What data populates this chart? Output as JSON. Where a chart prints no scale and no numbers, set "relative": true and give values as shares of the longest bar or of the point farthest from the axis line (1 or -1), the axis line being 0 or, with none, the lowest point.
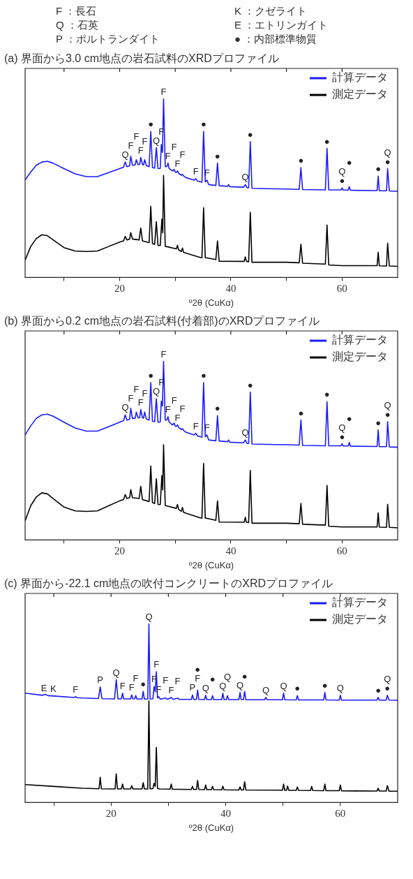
{
  "chart_data": [
    {
      "type": "line",
      "relative": true,
      "title": "(a) 界面から3.0 cm地点の岩石試料のXRDプロファイル",
      "xlabel": "º2θ (CuKα)",
      "xlim": [
        3,
        70
      ],
      "xticks": [
        {
          "value": 10,
          "label": null
        },
        20,
        {
          "value": 30,
          "label": null
        },
        40,
        {
          "value": 50,
          "label": null
        },
        60
      ],
      "legend": "top right",
      "marker": "none",
      "series": [
        {
          "name": "計算データ",
          "color": "#1a1aff",
          "x": [
            3,
            4,
            5,
            6,
            7,
            8,
            10,
            12,
            14,
            16,
            18,
            20,
            20.7,
            21,
            21.3,
            21.8,
            22,
            22.3,
            22.8,
            23,
            23.3,
            23.6,
            23.8,
            24.1,
            24.3,
            24.5,
            24.8,
            25.3,
            25.6,
            25.9,
            26.3,
            26.6,
            26.9,
            27.3,
            27.5,
            27.7,
            27.9,
            28.2,
            28.5,
            28.7,
            28.9,
            29.5,
            29.8,
            30,
            30.2,
            30.4,
            30.7,
            31.1,
            31.3,
            31.6,
            32,
            33.4,
            33.7,
            34,
            34.8,
            35.1,
            35.4,
            35.7,
            36,
            37.3,
            37.6,
            37.9,
            39.4,
            39.6,
            39.8,
            42.3,
            42.6,
            42.9,
            43.2,
            43.5,
            43.8,
            48,
            50,
            52.3,
            52.6,
            52.9,
            57,
            57.3,
            57.6,
            59.8,
            60,
            60.2,
            61.1,
            61.3,
            61.5,
            66.3,
            66.5,
            66.7,
            68,
            68.2,
            68.5,
            70
          ],
          "values": [
            0.545,
            0.59,
            0.628,
            0.646,
            0.65,
            0.64,
            0.609,
            0.58,
            0.564,
            0.564,
            0.587,
            0.609,
            0.617,
            0.646,
            0.62,
            0.625,
            0.678,
            0.628,
            0.63,
            0.659,
            0.632,
            0.633,
            0.672,
            0.632,
            0.63,
            0.659,
            0.627,
            0.62,
            0.817,
            0.615,
            0.612,
            0.726,
            0.609,
            0.61,
            0.744,
            0.7,
            1,
            0.62,
            0.621,
            0.64,
            0.61,
            0.596,
            0.605,
            0.59,
            0.588,
            0.596,
            0.58,
            0.572,
            0.577,
            0.565,
            0.558,
            0.545,
            0.553,
            0.54,
            0.533,
            0.817,
            0.535,
            0.545,
            0.52,
            0.515,
            0.64,
            0.514,
            0.51,
            0.52,
            0.508,
            0.505,
            0.52,
            0.502,
            0.502,
            0.76,
            0.499,
            0.496,
            0.495,
            0.493,
            0.615,
            0.492,
            0.49,
            0.722,
            0.49,
            0.49,
            0.501,
            0.489,
            0.489,
            0.508,
            0.488,
            0.486,
            0.567,
            0.485,
            0.485,
            0.609,
            0.484,
            0.482
          ]
        },
        {
          "name": "測定データ",
          "color": "#000000",
          "x": [
            3,
            4,
            5,
            6,
            7,
            8,
            10,
            12,
            14,
            16,
            18,
            20,
            20.7,
            21,
            21.3,
            21.8,
            22,
            22.3,
            23.5,
            23.8,
            24.1,
            25.3,
            25.6,
            25.9,
            26.3,
            26.6,
            26.9,
            27.3,
            27.6,
            27.75,
            27.9,
            28.2,
            28.4,
            30.2,
            30.4,
            30.6,
            31.1,
            31.3,
            31.5,
            32,
            34.5,
            34.8,
            35.1,
            35.4,
            35.6,
            37.3,
            37.6,
            37.9,
            42.4,
            42.6,
            42.8,
            43.2,
            43.5,
            43.8,
            50,
            52.3,
            52.6,
            52.9,
            57,
            57.3,
            57.6,
            60,
            66.3,
            66.5,
            66.7,
            68,
            68.2,
            68.5,
            70
          ],
          "values": [
            0.097,
            0.173,
            0.217,
            0.239,
            0.234,
            0.211,
            0.167,
            0.148,
            0.145,
            0.148,
            0.173,
            0.198,
            0.205,
            0.23,
            0.21,
            0.215,
            0.251,
            0.215,
            0.21,
            0.277,
            0.205,
            0.195,
            0.398,
            0.19,
            0.185,
            0.312,
            0.18,
            0.179,
            0.327,
            0.25,
            0.571,
            0.175,
            0.173,
            0.16,
            0.18,
            0.155,
            0.145,
            0.165,
            0.14,
            0.135,
            0.112,
            0.11,
            0.39,
            0.11,
            0.11,
            0.1,
            0.205,
            0.091,
            0.09,
            0.115,
            0.09,
            0.088,
            0.365,
            0.085,
            0.085,
            0.082,
            0.186,
            0.08,
            0.075,
            0.293,
            0.07,
            0.066,
            0.066,
            0.141,
            0.065,
            0.064,
            0.192,
            0.064,
            0.062
          ]
        }
      ],
      "annotations": [
        "F ：長石",
        "Q ：石英",
        "P ：ポルトランダイト",
        "K ：クゼライト",
        "E ：エトリンガイト",
        "● ：内部標準物質",
        {
          "text": "Q",
          "x": 21,
          "y": 0.646
        },
        {
          "text": "F",
          "x": 22,
          "y": 0.678
        },
        {
          "text": "F",
          "x": 23,
          "y": 0.659
        },
        {
          "text": "F",
          "x": 23.8,
          "y": 0.672
        },
        {
          "text": "F",
          "x": 24.5,
          "y": 0.659
        },
        {
          "text": "●",
          "x": 25.6,
          "y": 0.817
        },
        {
          "text": "Q",
          "x": 26.6,
          "y": 0.726
        },
        {
          "text": "F",
          "x": 27.9,
          "y": 1
        },
        {
          "text": "F",
          "x": 27.5,
          "y": 0.744
        },
        {
          "text": "F",
          "x": 28.7,
          "y": 0.64
        },
        {
          "text": "F",
          "x": 29.8,
          "y": 0.605
        },
        {
          "text": "F",
          "x": 30.4,
          "y": 0.596
        },
        {
          "text": "F",
          "x": 31.3,
          "y": 0.577
        },
        {
          "text": "F",
          "x": 33.7,
          "y": 0.553
        },
        {
          "text": "●",
          "x": 35.1,
          "y": 0.817
        },
        {
          "text": "F",
          "x": 35.7,
          "y": 0.545
        },
        {
          "text": "●",
          "x": 37.6,
          "y": 0.64
        },
        {
          "text": "Q",
          "x": 42.6,
          "y": 0.52
        },
        {
          "text": "●",
          "x": 43.5,
          "y": 0.76
        },
        {
          "text": "●",
          "x": 52.6,
          "y": 0.615
        },
        {
          "text": "●",
          "x": 57.3,
          "y": 0.722
        },
        {
          "text": "●",
          "x": 60,
          "y": 0.501
        },
        {
          "text": "Q",
          "x": 60,
          "y": 0.501
        },
        {
          "text": "●",
          "x": 61.3,
          "y": 0.508
        },
        {
          "text": "●",
          "x": 66.5,
          "y": 0.567
        },
        {
          "text": "●",
          "x": 68.2,
          "y": 0.609
        },
        {
          "text": "Q",
          "x": 68.2,
          "y": 0.609
        }
      ]
    },
    {
      "type": "line",
      "relative": true,
      "title": "(b) 界面から0.2 cm地点の岩石試料(付着部)のXRDプロファイル",
      "xlabel": "º2θ (CuKα)",
      "xlim": [
        3,
        70
      ],
      "xticks": [
        {
          "value": 10,
          "label": null
        },
        20,
        {
          "value": 30,
          "label": null
        },
        40,
        {
          "value": 50,
          "label": null
        },
        60
      ],
      "legend": "top right",
      "marker": "none",
      "series": [
        {
          "name": "計算データ",
          "color": "#1a1aff",
          "x": [
            3,
            4,
            5,
            6,
            7,
            8,
            10,
            12,
            14,
            16,
            18,
            20,
            20.7,
            21,
            21.3,
            21.8,
            22,
            22.3,
            22.8,
            23,
            23.3,
            23.6,
            23.8,
            24.1,
            24.3,
            24.5,
            24.8,
            25.3,
            25.6,
            25.9,
            26.3,
            26.6,
            26.9,
            27.3,
            27.5,
            27.7,
            27.9,
            28.2,
            28.5,
            28.7,
            28.9,
            29.5,
            29.8,
            30,
            30.2,
            30.4,
            30.7,
            31.1,
            31.3,
            31.6,
            32,
            33.4,
            33.7,
            34,
            34.8,
            35.1,
            35.4,
            35.7,
            36,
            37.3,
            37.6,
            37.9,
            39.4,
            39.6,
            39.8,
            42.3,
            42.6,
            42.9,
            43.2,
            43.5,
            43.8,
            48,
            50,
            52.3,
            52.6,
            52.9,
            57,
            57.3,
            57.6,
            59.8,
            60,
            60.2,
            61.1,
            61.3,
            61.5,
            66.3,
            66.5,
            66.7,
            68,
            68.2,
            68.5,
            70
          ],
          "values": [
            0.588,
            0.638,
            0.68,
            0.7,
            0.704,
            0.693,
            0.659,
            0.627,
            0.609,
            0.609,
            0.634,
            0.659,
            0.668,
            0.7,
            0.671,
            0.676,
            0.737,
            0.68,
            0.682,
            0.716,
            0.684,
            0.685,
            0.73,
            0.684,
            0.682,
            0.716,
            0.678,
            0.671,
            0.881,
            0.665,
            0.662,
            0.791,
            0.659,
            0.66,
            0.777,
            0.75,
            1,
            0.671,
            0.672,
            0.69,
            0.66,
            0.644,
            0.654,
            0.638,
            0.635,
            0.644,
            0.627,
            0.618,
            0.623,
            0.61,
            0.602,
            0.588,
            0.597,
            0.583,
            0.575,
            0.881,
            0.577,
            0.588,
            0.56,
            0.555,
            0.696,
            0.554,
            0.55,
            0.56,
            0.547,
            0.544,
            0.56,
            0.54,
            0.54,
            0.828,
            0.537,
            0.534,
            0.533,
            0.531,
            0.672,
            0.529,
            0.527,
            0.774,
            0.527,
            0.527,
            0.538,
            0.526,
            0.526,
            0.546,
            0.525,
            0.523,
            0.616,
            0.522,
            0.522,
            0.662,
            0.521,
            0.519
          ]
        },
        {
          "name": "測定データ",
          "color": "#000000",
          "x": [
            3,
            4,
            5,
            6,
            7,
            8,
            10,
            12,
            14,
            16,
            18,
            20,
            20.7,
            21,
            21.3,
            21.8,
            22,
            22.3,
            23.5,
            23.8,
            24.1,
            25.3,
            25.6,
            25.9,
            26.3,
            26.6,
            26.9,
            27.3,
            27.6,
            27.75,
            27.9,
            28.2,
            28.4,
            30.2,
            30.4,
            30.6,
            31.1,
            31.3,
            31.5,
            32,
            34.5,
            34.8,
            35.1,
            35.4,
            35.6,
            37.3,
            37.6,
            37.9,
            42.4,
            42.6,
            42.8,
            43.2,
            43.5,
            43.8,
            50,
            52.3,
            52.6,
            52.9,
            57,
            57.3,
            57.6,
            60,
            66.3,
            66.5,
            66.7,
            68,
            68.2,
            68.5,
            70
          ],
          "values": [
            0.107,
            0.191,
            0.24,
            0.264,
            0.258,
            0.233,
            0.184,
            0.163,
            0.16,
            0.163,
            0.191,
            0.219,
            0.226,
            0.254,
            0.232,
            0.237,
            0.282,
            0.237,
            0.232,
            0.3,
            0.226,
            0.215,
            0.414,
            0.21,
            0.204,
            0.342,
            0.199,
            0.198,
            0.361,
            0.28,
            0.533,
            0.193,
            0.191,
            0.177,
            0.199,
            0.171,
            0.16,
            0.182,
            0.155,
            0.149,
            0.124,
            0.122,
            0.428,
            0.122,
            0.122,
            0.11,
            0.219,
            0.1,
            0.099,
            0.127,
            0.099,
            0.097,
            0.389,
            0.094,
            0.094,
            0.091,
            0.205,
            0.088,
            0.083,
            0.305,
            0.077,
            0.073,
            0.073,
            0.152,
            0.072,
            0.071,
            0.2,
            0.071,
            0.068
          ]
        }
      ],
      "annotations": [
        {
          "text": "Q",
          "x": 21,
          "y": 0.7
        },
        {
          "text": "F",
          "x": 22,
          "y": 0.737
        },
        {
          "text": "F",
          "x": 23,
          "y": 0.716
        },
        {
          "text": "F",
          "x": 23.8,
          "y": 0.73
        },
        {
          "text": "F",
          "x": 24.5,
          "y": 0.716
        },
        {
          "text": "●",
          "x": 25.6,
          "y": 0.881
        },
        {
          "text": "Q",
          "x": 26.6,
          "y": 0.791
        },
        {
          "text": "F",
          "x": 27.9,
          "y": 1
        },
        {
          "text": "F",
          "x": 27.5,
          "y": 0.777
        },
        {
          "text": "F",
          "x": 28.7,
          "y": 0.69
        },
        {
          "text": "F",
          "x": 29.8,
          "y": 0.654
        },
        {
          "text": "F",
          "x": 30.4,
          "y": 0.644
        },
        {
          "text": "F",
          "x": 31.3,
          "y": 0.623
        },
        {
          "text": "F",
          "x": 33.7,
          "y": 0.597
        },
        {
          "text": "●",
          "x": 35.1,
          "y": 0.881
        },
        {
          "text": "F",
          "x": 35.7,
          "y": 0.588
        },
        {
          "text": "●",
          "x": 37.6,
          "y": 0.696
        },
        {
          "text": "Q",
          "x": 42.6,
          "y": 0.56
        },
        {
          "text": "●",
          "x": 43.5,
          "y": 0.828
        },
        {
          "text": "●",
          "x": 52.6,
          "y": 0.672
        },
        {
          "text": "●",
          "x": 57.3,
          "y": 0.774
        },
        {
          "text": "●",
          "x": 60,
          "y": 0.538
        },
        {
          "text": "Q",
          "x": 60,
          "y": 0.538
        },
        {
          "text": "●",
          "x": 61.3,
          "y": 0.546
        },
        {
          "text": "●",
          "x": 66.5,
          "y": 0.616
        },
        {
          "text": "●",
          "x": 68.2,
          "y": 0.662
        },
        {
          "text": "Q",
          "x": 68.2,
          "y": 0.662
        }
      ]
    },
    {
      "type": "line",
      "relative": true,
      "title": "(c) 界面から-22.1 cm地点の吹付コンクリートのXRDプロファイル",
      "xlabel": "º2θ (CuKα)",
      "xlim": [
        5,
        70
      ],
      "xticks": [
        {
          "value": 10,
          "label": null
        },
        20,
        {
          "value": 30,
          "label": null
        },
        40,
        {
          "value": 50,
          "label": null
        },
        60
      ],
      "legend": "top right",
      "marker": "none",
      "series": [
        {
          "name": "計算データ",
          "color": "#1a1aff",
          "x": [
            5,
            8,
            8.5,
            9,
            10,
            13.5,
            13.8,
            14.1,
            15,
            17.8,
            18.1,
            18.4,
            20.6,
            20.9,
            21.2,
            21.8,
            22,
            22.2,
            23.4,
            23.6,
            23.8,
            24.1,
            24.3,
            24.5,
            25.4,
            25.6,
            25.8,
            26.4,
            26.6,
            26.8,
            27.3,
            27.5,
            27.7,
            27.9,
            28.1,
            28.3,
            28.6,
            29.5,
            29.8,
            30.5,
            30.8,
            31.6,
            31.9,
            34,
            34.2,
            34.4,
            34.9,
            35.1,
            35.3,
            36.3,
            36.5,
            36.7,
            37.5,
            37.7,
            37.9,
            39.3,
            39.5,
            39.7,
            40.1,
            40.3,
            40.5,
            42.3,
            42.5,
            42.7,
            43.1,
            43.3,
            43.5,
            46.8,
            47,
            47.2,
            49.9,
            50.1,
            50.3,
            52.3,
            52.5,
            52.7,
            57.1,
            57.3,
            57.5,
            59.8,
            60,
            60.2,
            66.4,
            66.6,
            66.8,
            68,
            68.2,
            68.5,
            70
          ],
          "values": [
            0.612,
            0.6,
            0.605,
            0.598,
            0.596,
            0.588,
            0.592,
            0.587,
            0.585,
            0.582,
            0.647,
            0.581,
            0.58,
            0.687,
            0.58,
            0.58,
            0.612,
            0.58,
            0.58,
            0.602,
            0.58,
            0.58,
            0.598,
            0.579,
            0.579,
            0.622,
            0.579,
            0.579,
            1,
            0.579,
            0.58,
            0.649,
            0.62,
            0.732,
            0.585,
            0.592,
            0.578,
            0.585,
            0.577,
            0.588,
            0.577,
            0.584,
            0.577,
            0.577,
            0.602,
            0.577,
            0.577,
            0.629,
            0.577,
            0.576,
            0.6,
            0.576,
            0.576,
            0.598,
            0.576,
            0.576,
            0.612,
            0.576,
            0.576,
            0.598,
            0.576,
            0.576,
            0.616,
            0.576,
            0.576,
            0.622,
            0.575,
            0.575,
            0.588,
            0.575,
            0.575,
            0.612,
            0.575,
            0.574,
            0.598,
            0.574,
            0.574,
            0.616,
            0.574,
            0.573,
            0.6,
            0.573,
            0.573,
            0.588,
            0.573,
            0.573,
            0.6,
            0.573,
            0.572
          ]
        },
        {
          "name": "測定データ",
          "color": "#000000",
          "x": [
            5,
            10,
            15,
            17.9,
            18.1,
            18.3,
            20.7,
            20.9,
            21.1,
            21.8,
            22,
            22.2,
            23.4,
            23.6,
            23.8,
            25.4,
            25.6,
            25.8,
            26.4,
            26.6,
            26.8,
            27.3,
            27.5,
            27.7,
            27.9,
            28.1,
            28.4,
            30.3,
            30.5,
            30.7,
            34,
            34.2,
            34.4,
            34.9,
            35.1,
            35.3,
            36.3,
            36.5,
            36.7,
            37.5,
            37.7,
            37.9,
            39.3,
            39.5,
            39.7,
            42.3,
            42.5,
            42.7,
            43.1,
            43.3,
            43.5,
            49.9,
            50.1,
            50.3,
            50.6,
            50.8,
            51,
            52.3,
            52.5,
            52.7,
            54.8,
            55,
            55.2,
            57.1,
            57.3,
            57.5,
            59.8,
            60,
            60.2,
            66.4,
            66.6,
            66.8,
            68,
            68.2,
            68.5,
            70
          ],
          "values": [
            0.1,
            0.09,
            0.08,
            0.077,
            0.141,
            0.077,
            0.076,
            0.161,
            0.076,
            0.076,
            0.103,
            0.076,
            0.076,
            0.094,
            0.076,
            0.076,
            0.111,
            0.076,
            0.076,
            0.569,
            0.076,
            0.078,
            0.107,
            0.09,
            0.308,
            0.08,
            0.076,
            0.075,
            0.103,
            0.074,
            0.073,
            0.09,
            0.073,
            0.073,
            0.123,
            0.073,
            0.072,
            0.098,
            0.072,
            0.072,
            0.09,
            0.072,
            0.071,
            0.091,
            0.071,
            0.07,
            0.087,
            0.07,
            0.07,
            0.116,
            0.07,
            0.069,
            0.103,
            0.068,
            0.068,
            0.092,
            0.068,
            0.068,
            0.087,
            0.068,
            0.067,
            0.09,
            0.067,
            0.066,
            0.103,
            0.066,
            0.066,
            0.098,
            0.065,
            0.064,
            0.08,
            0.064,
            0.064,
            0.094,
            0.063,
            0.063
          ]
        }
      ],
      "annotations": [
        {
          "text": "E",
          "x": 8.3,
          "y": 0.6
        },
        {
          "text": "K",
          "x": 9.9,
          "y": 0.596
        },
        {
          "text": "F",
          "x": 13.8,
          "y": 0.592
        },
        {
          "text": "P",
          "x": 18.1,
          "y": 0.647
        },
        {
          "text": "Q",
          "x": 20.9,
          "y": 0.687
        },
        {
          "text": "F",
          "x": 22,
          "y": 0.612
        },
        {
          "text": "F",
          "x": 23.6,
          "y": 0.602
        },
        {
          "text": "F",
          "x": 24.3,
          "y": 0.598
        },
        {
          "text": "●",
          "x": 25.6,
          "y": 0.622
        },
        {
          "text": "Q",
          "x": 26.6,
          "y": 1
        },
        {
          "text": "F",
          "x": 27.9,
          "y": 0.732
        },
        {
          "text": "F",
          "x": 27.5,
          "y": 0.649
        },
        {
          "text": "F",
          "x": 28.3,
          "y": 0.592
        },
        {
          "text": "F",
          "x": 29.5,
          "y": 0.585
        },
        {
          "text": "F",
          "x": 30.5,
          "y": 0.588
        },
        {
          "text": "F",
          "x": 31.6,
          "y": 0.584
        },
        {
          "text": "P",
          "x": 34.2,
          "y": 0.602
        },
        {
          "text": "F",
          "x": 35.1,
          "y": 0.629
        },
        {
          "text": "●",
          "x": 35.1,
          "y": 0.629
        },
        {
          "text": "Q",
          "x": 36.5,
          "y": 0.6
        },
        {
          "text": "●",
          "x": 37.7,
          "y": 0.598
        },
        {
          "text": "Q",
          "x": 39.5,
          "y": 0.612
        },
        {
          "text": "Q",
          "x": 40.3,
          "y": 0.598
        },
        {
          "text": "Q",
          "x": 42.5,
          "y": 0.616
        },
        {
          "text": "●",
          "x": 43.3,
          "y": 0.622
        },
        {
          "text": "Q",
          "x": 47,
          "y": 0.588
        },
        {
          "text": "Q",
          "x": 50.1,
          "y": 0.612
        },
        {
          "text": "●",
          "x": 52.5,
          "y": 0.598
        },
        {
          "text": "●",
          "x": 57.3,
          "y": 0.616
        },
        {
          "text": "Q",
          "x": 60,
          "y": 0.6
        },
        {
          "text": "●",
          "x": 66.6,
          "y": 0.588
        },
        {
          "text": "●",
          "x": 68.2,
          "y": 0.6
        },
        {
          "text": "Q",
          "x": 68.2,
          "y": 0.6
        }
      ]
    }
  ]
}
